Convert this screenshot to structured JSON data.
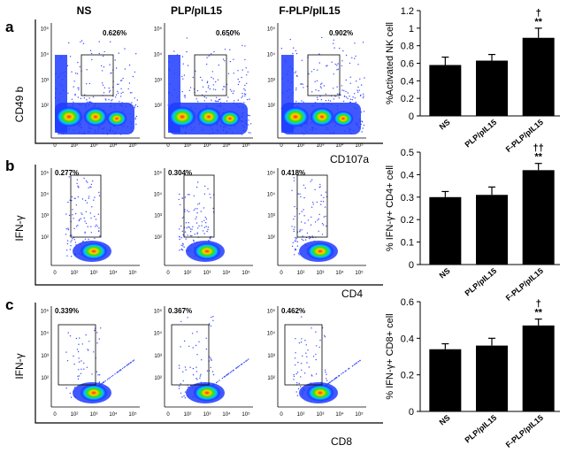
{
  "figure": {
    "flow_groups": [
      "NS",
      "PLP/pIL15",
      "F-PLP/pIL15"
    ],
    "tick_labels": [
      "0",
      "10²",
      "10³",
      "10⁴",
      "10⁵"
    ],
    "colors": {
      "bar": "#000000",
      "axis": "#000000",
      "density_hot": "#ff2200",
      "density_cold": "#1f3cff"
    }
  },
  "panels": [
    {
      "letter": "a",
      "flow_xlabel": "CD107a",
      "flow_ylabel": "CD49 b",
      "gate_percents": [
        "0.626%",
        "0.650%",
        "0.902%"
      ]
    },
    {
      "letter": "b",
      "flow_xlabel": "CD4",
      "flow_ylabel": "IFN-γ",
      "gate_percents": [
        "0.277%",
        "0.304%",
        "0.418%"
      ]
    },
    {
      "letter": "c",
      "flow_xlabel": "CD8",
      "flow_ylabel": "IFN-γ",
      "gate_percents": [
        "0.339%",
        "0.367%",
        "0.462%"
      ]
    }
  ],
  "chart_data": [
    {
      "type": "bar",
      "panel": "a",
      "categories": [
        "NS",
        "PLP/pIL15",
        "F-PLP/pIL15"
      ],
      "values": [
        0.58,
        0.63,
        0.89
      ],
      "errors": [
        0.09,
        0.07,
        0.11
      ],
      "annotations": [
        "",
        "",
        "†\n**"
      ],
      "ylabel": "%Activated NK cell",
      "ylim": [
        0,
        1.2
      ],
      "yticks": [
        "0",
        "0.2",
        "0.4",
        "0.6",
        "0.8",
        "1",
        "1.2"
      ]
    },
    {
      "type": "bar",
      "panel": "b",
      "categories": [
        "NS",
        "PLP/pIL15",
        "F-PLP/pIL15"
      ],
      "values": [
        0.3,
        0.31,
        0.42
      ],
      "errors": [
        0.025,
        0.035,
        0.03
      ],
      "annotations": [
        "",
        "",
        "††\n**"
      ],
      "ylabel": "% IFN-γ+ CD4+ cell",
      "ylim": [
        0,
        0.5
      ],
      "yticks": [
        "0",
        "0.1",
        "0.2",
        "0.3",
        "0.4",
        "0.5"
      ]
    },
    {
      "type": "bar",
      "panel": "c",
      "categories": [
        "NS",
        "PLP/pIL15",
        "F-PLP/pIL15"
      ],
      "values": [
        0.34,
        0.36,
        0.47
      ],
      "errors": [
        0.03,
        0.04,
        0.035
      ],
      "annotations": [
        "",
        "",
        "†\n**"
      ],
      "ylabel": "% IFN-γ+ CD8+ cell",
      "ylim": [
        0,
        0.6
      ],
      "yticks": [
        "0",
        "0.2",
        "0.4",
        "0.6"
      ]
    }
  ]
}
